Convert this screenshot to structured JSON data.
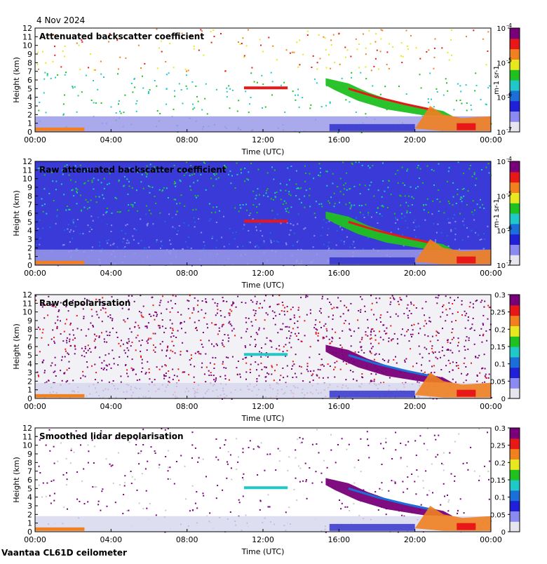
{
  "header": {
    "date": "4 Nov 2024"
  },
  "footer": {
    "site": "Vaantaa CL61D ceilometer"
  },
  "colors": {
    "colormap": [
      "#e6e6ee",
      "#8a8af0",
      "#2020d8",
      "#1c6ed8",
      "#20c8c8",
      "#20c020",
      "#e8e820",
      "#f08020",
      "#e81818",
      "#780078"
    ],
    "axis": "#000000"
  },
  "chart_data": [
    {
      "type": "heatmap",
      "title": "Attenuated backscatter coefficient",
      "xlabel": "Time (UTC)",
      "ylabel": "Height (km)",
      "x_ticks": [
        "00:00",
        "04:00",
        "08:00",
        "12:00",
        "16:00",
        "20:00",
        "00:00"
      ],
      "x_range_hours": [
        0,
        24
      ],
      "y_ticks": [
        0,
        1,
        2,
        3,
        4,
        5,
        6,
        7,
        8,
        9,
        10,
        11,
        12
      ],
      "ylim": [
        0,
        12
      ],
      "colorbar": {
        "scale": "log",
        "ticks": [
          "10-4",
          "10-5",
          "10-6",
          "10-7"
        ],
        "unit": "m-1 sr-1"
      },
      "features": [
        {
          "label": "boundary layer",
          "t_start": 0,
          "t_end": 24,
          "h_low": 0,
          "h_high": 1.8
        },
        {
          "label": "low layer",
          "t_start": 0,
          "t_end": 2.6,
          "h_low": 0.2,
          "h_high": 0.5
        },
        {
          "label": "thin cloud",
          "t_start": 11.0,
          "t_end": 13.3,
          "h_low": 5.0,
          "h_high": 5.2
        },
        {
          "label": "descending cloud",
          "t_start": 15.3,
          "t_end": 22.0,
          "h_low": 1.8,
          "h_high": 6.2
        },
        {
          "label": "low cloud",
          "t_start": 20.0,
          "t_end": 24.0,
          "h_low": 0.1,
          "h_high": 3.0
        }
      ]
    },
    {
      "type": "heatmap",
      "title": "Raw attenuated backscatter coefficient",
      "xlabel": "Time (UTC)",
      "ylabel": "Height (km)",
      "x_ticks": [
        "00:00",
        "04:00",
        "08:00",
        "12:00",
        "16:00",
        "20:00",
        "00:00"
      ],
      "x_range_hours": [
        0,
        24
      ],
      "y_ticks": [
        0,
        1,
        2,
        3,
        4,
        5,
        6,
        7,
        8,
        9,
        10,
        11,
        12
      ],
      "ylim": [
        0,
        12
      ],
      "colorbar": {
        "scale": "log",
        "ticks": [
          "10-4",
          "10-5",
          "10-6",
          "10-7"
        ],
        "unit": "m-1 sr-1"
      }
    },
    {
      "type": "heatmap",
      "title": "Raw depolarisation",
      "xlabel": "Time (UTC)",
      "ylabel": "Height (km)",
      "x_ticks": [
        "00:00",
        "04:00",
        "08:00",
        "12:00",
        "16:00",
        "20:00",
        "00:00"
      ],
      "x_range_hours": [
        0,
        24
      ],
      "y_ticks": [
        0,
        1,
        2,
        3,
        4,
        5,
        6,
        7,
        8,
        9,
        10,
        11,
        12
      ],
      "ylim": [
        0,
        12
      ],
      "colorbar": {
        "scale": "linear",
        "ticks": [
          "0.3",
          "0.25",
          "0.2",
          "0.15",
          "0.1",
          "0.05",
          "0"
        ]
      }
    },
    {
      "type": "heatmap",
      "title": "Smoothed lidar depolarisation",
      "xlabel": "Time (UTC)",
      "ylabel": "Height (km)",
      "x_ticks": [
        "00:00",
        "04:00",
        "08:00",
        "12:00",
        "16:00",
        "20:00",
        "00:00"
      ],
      "x_range_hours": [
        0,
        24
      ],
      "y_ticks": [
        0,
        1,
        2,
        3,
        4,
        5,
        6,
        7,
        8,
        9,
        10,
        11,
        12
      ],
      "ylim": [
        0,
        12
      ],
      "colorbar": {
        "scale": "linear",
        "ticks": [
          "0.3",
          "0.25",
          "0.2",
          "0.15",
          "0.1",
          "0.05",
          "0"
        ]
      }
    }
  ]
}
